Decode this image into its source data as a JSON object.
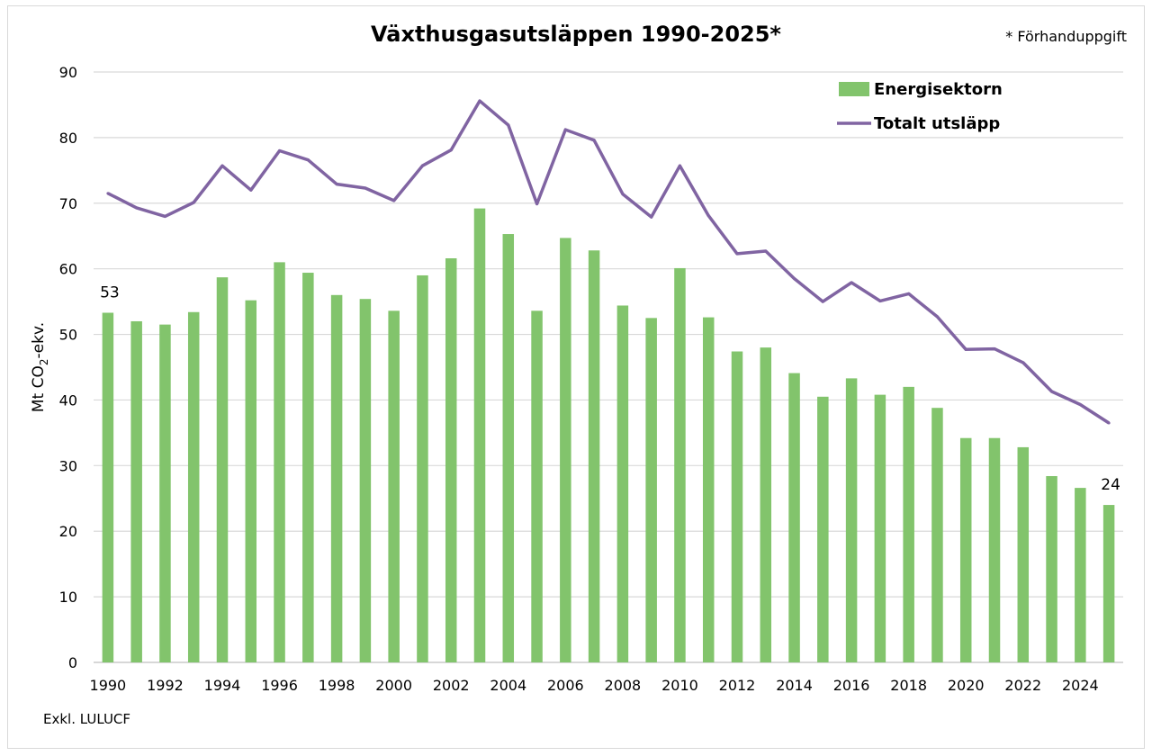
{
  "chart_data": {
    "type": "bar",
    "title": "Växthusgasutsläppen 1990-2025*",
    "note": "* Förhanduppgift",
    "ylabel_prefix": "Mt CO",
    "ylabel_sub": "2",
    "ylabel_suffix": "-ekv.",
    "footnote": "Exkl. LULUCF",
    "ylim": [
      0,
      90
    ],
    "yticks": [
      "0",
      "10",
      "20",
      "30",
      "40",
      "50",
      "60",
      "70",
      "80",
      "90"
    ],
    "xticks": [
      "1990",
      "1992",
      "1994",
      "1996",
      "1998",
      "2000",
      "2002",
      "2004",
      "2006",
      "2008",
      "2010",
      "2012",
      "2014",
      "2016",
      "2018",
      "2020",
      "2022",
      "2024"
    ],
    "grid": true,
    "legend_position": "top-right",
    "x": [
      1990,
      1991,
      1992,
      1993,
      1994,
      1995,
      1996,
      1997,
      1998,
      1999,
      2000,
      2001,
      2002,
      2003,
      2004,
      2005,
      2006,
      2007,
      2008,
      2009,
      2010,
      2011,
      2012,
      2013,
      2014,
      2015,
      2016,
      2017,
      2018,
      2019,
      2020,
      2021,
      2022,
      2023,
      2024,
      2025
    ],
    "series": [
      {
        "name": "Energisektorn",
        "type": "bar",
        "color": "#82c46c",
        "values": [
          53.3,
          52.0,
          51.5,
          53.4,
          58.7,
          55.2,
          61.0,
          59.4,
          56.0,
          55.4,
          53.6,
          59.0,
          61.6,
          69.2,
          65.3,
          53.6,
          64.7,
          62.8,
          54.4,
          52.5,
          60.1,
          52.6,
          47.4,
          48.0,
          44.1,
          40.5,
          43.3,
          40.8,
          42.0,
          38.8,
          34.2,
          34.2,
          32.8,
          28.4,
          26.6,
          24.0
        ]
      },
      {
        "name": "Totalt utsläpp",
        "type": "line",
        "color": "#8064a2",
        "values": [
          71.5,
          69.3,
          68.0,
          70.1,
          75.7,
          72.0,
          78.0,
          76.6,
          72.9,
          72.3,
          70.4,
          75.7,
          78.1,
          85.6,
          81.9,
          69.9,
          81.2,
          79.6,
          71.4,
          67.9,
          75.7,
          68.1,
          62.3,
          62.7,
          58.5,
          55.0,
          57.9,
          55.1,
          56.2,
          52.7,
          47.7,
          47.8,
          45.7,
          41.3,
          39.3,
          36.5
        ]
      }
    ],
    "data_labels": [
      {
        "index": 0,
        "text": "53"
      },
      {
        "index": 35,
        "text": "24"
      }
    ]
  }
}
